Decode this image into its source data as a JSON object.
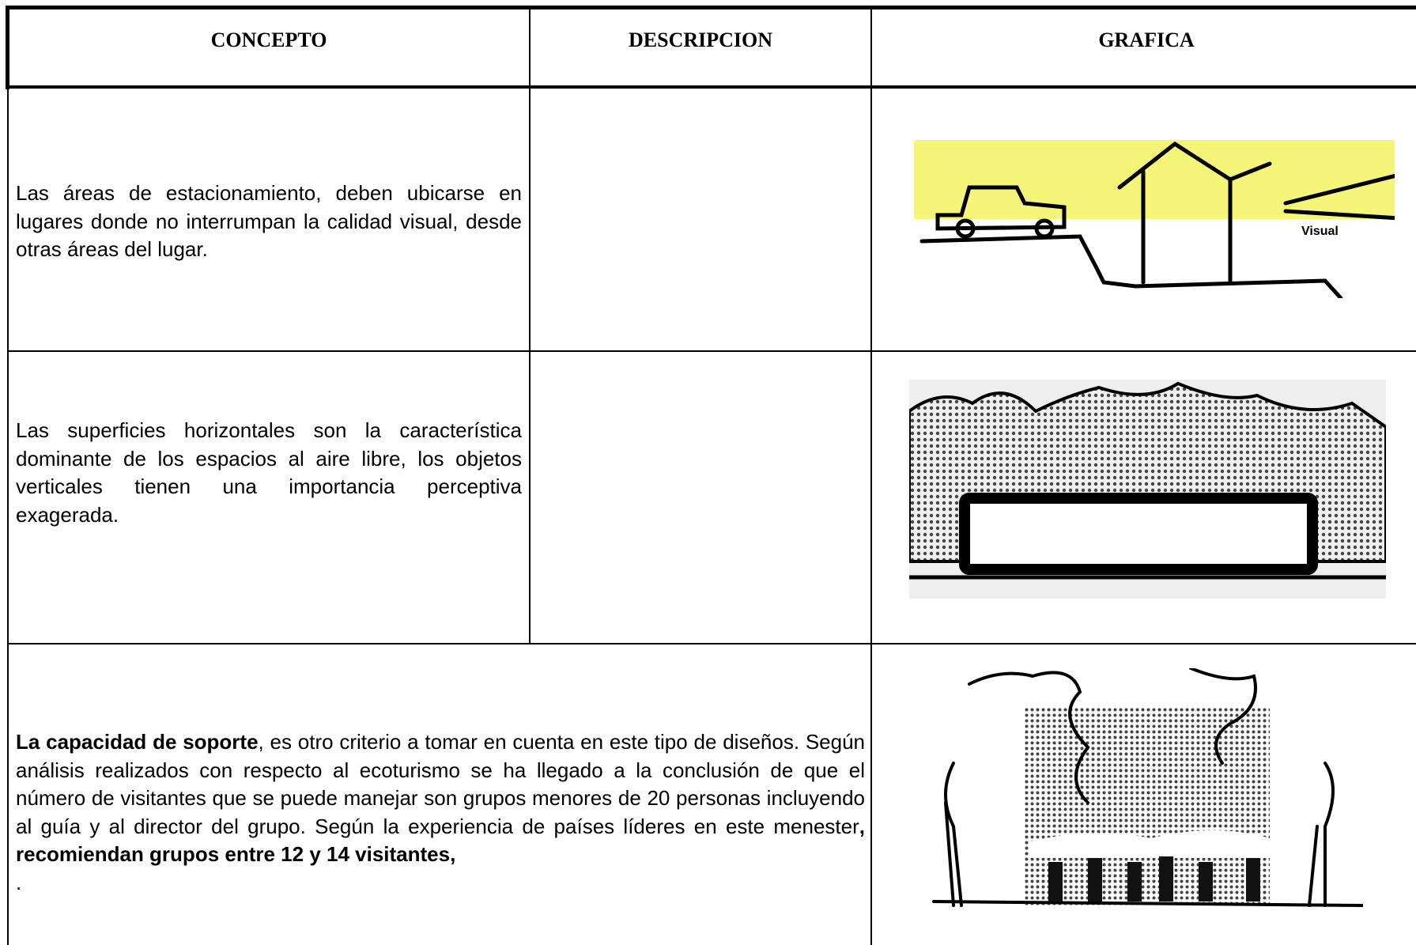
{
  "header": {
    "columns": [
      "CONCEPTO",
      "DESCRIPCION",
      "GRAFICA"
    ]
  },
  "table": {
    "rows": [
      {
        "concepto": "Las áreas de estacionamiento, deben ubicarse en lugares donde no interrumpan la calidad visual, desde otras áreas del lugar.",
        "figure_label": "Visual"
      },
      {
        "concepto": "Las superficies horizontales son la característica dominante de los espacios al aire libre, los objetos verticales tienen una importancia perceptiva exagerada."
      },
      {
        "segments": [
          {
            "text": "La capacidad de soporte",
            "bold": true
          },
          {
            "text": ", es otro criterio a tomar en cuenta en este tipo de diseños. Según análisis realizados con respecto al ecoturismo se ha llegado a la conclusión de que el número de visitantes que se puede manejar son grupos menores de 20 personas incluyendo al guía y al director del grupo. Según la experiencia de países líderes en este menester",
            "bold": false
          },
          {
            "text": ", recomiendan grupos entre 12 y 14 visitantes,",
            "bold": true
          }
        ],
        "trailing": "."
      }
    ]
  }
}
